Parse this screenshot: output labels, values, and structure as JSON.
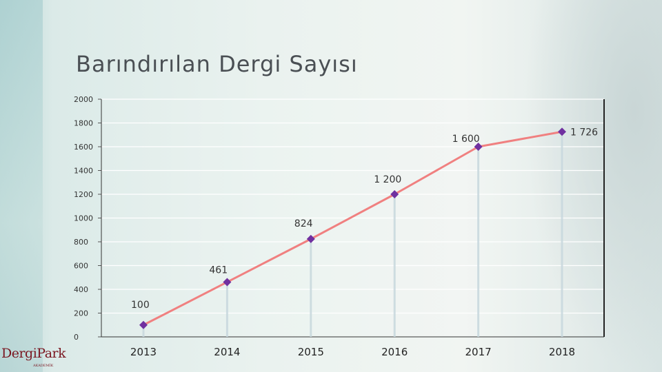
{
  "slide": {
    "title": "Barındırılan Dergi Sayısı",
    "logo_text": "DergiPark",
    "logo_subtext": "AKADEMİK"
  },
  "chart_data": {
    "type": "line",
    "title": "Barındırılan Dergi Sayısı",
    "xlabel": "",
    "ylabel": "",
    "categories": [
      "2013",
      "2014",
      "2015",
      "2016",
      "2017",
      "2018"
    ],
    "series": [
      {
        "values": [
          100,
          461,
          824,
          1200,
          1600,
          1726
        ]
      }
    ],
    "data_labels": [
      "100",
      "461",
      "824",
      "1 200",
      "1 600",
      "1 726"
    ],
    "ylim": [
      0,
      2000
    ],
    "yticks": [
      "0",
      "200",
      "400",
      "600",
      "800",
      "1000",
      "1200",
      "1400",
      "1600",
      "1800",
      "2000"
    ],
    "grid": true,
    "drop_lines": true,
    "colors": {
      "line": "#f08080",
      "marker": "#7030a0",
      "drop_line": "#c8d8de",
      "grid": "#ffffff",
      "axis": "#000000",
      "text": "#333333"
    }
  }
}
